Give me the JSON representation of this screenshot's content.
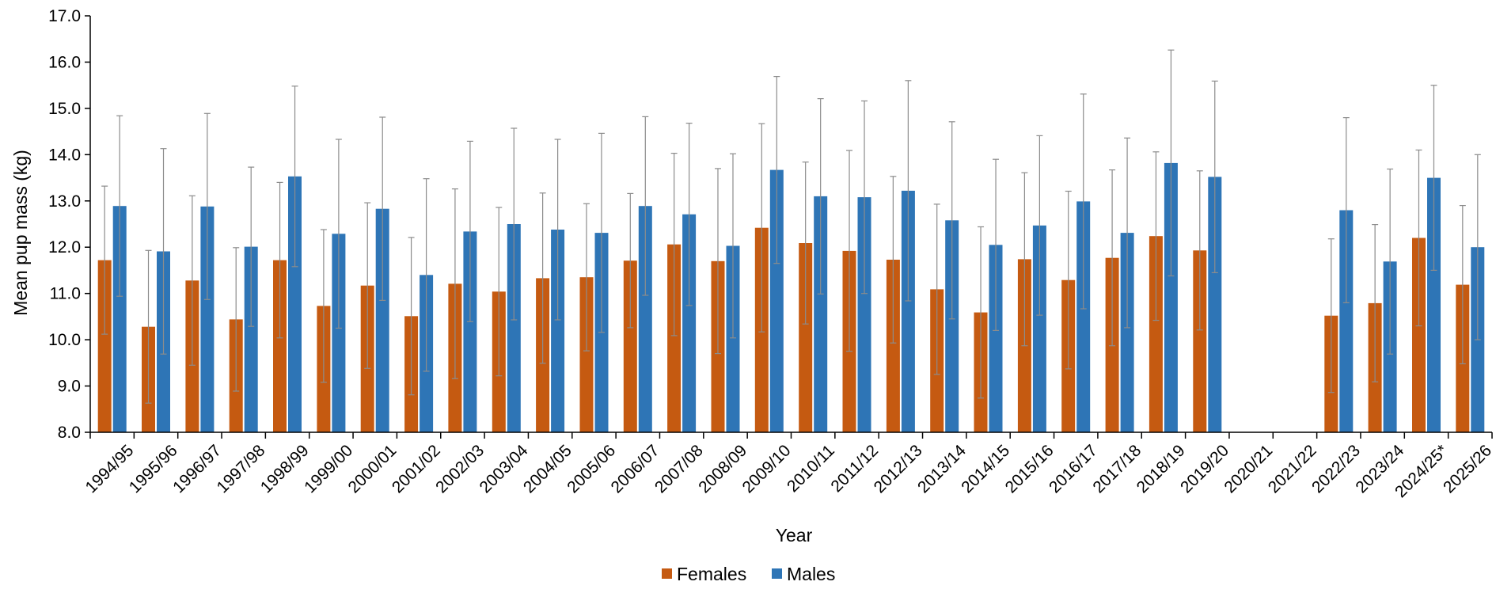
{
  "chart_data": {
    "type": "bar",
    "xlabel": "Year",
    "ylabel": "Mean pup mass (kg)",
    "ylim": [
      8.0,
      17.0
    ],
    "yticks": [
      "8.0",
      "9.0",
      "10.0",
      "11.0",
      "12.0",
      "13.0",
      "14.0",
      "15.0",
      "16.0",
      "17.0"
    ],
    "grid": false,
    "legend_position": "bottom",
    "categories": [
      "1994/95",
      "1995/96",
      "1996/97",
      "1997/98",
      "1998/99",
      "1999/00",
      "2000/01",
      "2001/02",
      "2002/03",
      "2003/04",
      "2004/05",
      "2005/06",
      "2006/07",
      "2007/08",
      "2008/09",
      "2009/10",
      "2010/11",
      "2011/12",
      "2012/13",
      "2013/14",
      "2014/15",
      "2015/16",
      "2016/17",
      "2017/18",
      "2018/19",
      "2019/20",
      "2020/21",
      "2021/22",
      "2022/23",
      "2023/24",
      "2024/25*",
      "2025/26"
    ],
    "series": [
      {
        "name": "Females",
        "color": "#c55a11",
        "values": [
          11.72,
          10.28,
          11.28,
          10.44,
          11.72,
          10.73,
          11.17,
          10.51,
          11.21,
          11.04,
          11.33,
          11.35,
          11.71,
          12.06,
          11.7,
          12.42,
          12.09,
          11.92,
          11.73,
          11.09,
          10.59,
          11.74,
          11.29,
          11.77,
          12.24,
          11.93,
          null,
          null,
          10.52,
          10.79,
          12.2,
          11.19
        ],
        "error": [
          1.6,
          1.65,
          1.83,
          1.55,
          1.68,
          1.65,
          1.79,
          1.7,
          2.05,
          1.82,
          1.84,
          1.59,
          1.45,
          1.97,
          2.0,
          2.25,
          1.75,
          2.17,
          1.8,
          1.84,
          1.85,
          1.87,
          1.92,
          1.9,
          1.82,
          1.72,
          null,
          null,
          1.66,
          1.7,
          1.9,
          1.71
        ]
      },
      {
        "name": "Males",
        "color": "#2e75b6",
        "values": [
          12.89,
          11.91,
          12.88,
          12.01,
          13.53,
          12.29,
          12.83,
          11.4,
          12.34,
          12.5,
          12.38,
          12.31,
          12.89,
          12.71,
          12.03,
          13.67,
          13.1,
          13.08,
          13.22,
          12.58,
          12.05,
          12.47,
          12.99,
          12.31,
          13.82,
          13.52,
          null,
          null,
          12.8,
          11.69,
          13.5,
          12.0
        ],
        "error": [
          1.95,
          2.22,
          2.01,
          1.72,
          1.95,
          2.04,
          1.98,
          2.08,
          1.95,
          2.07,
          1.95,
          2.15,
          1.93,
          1.97,
          1.99,
          2.02,
          2.11,
          2.08,
          2.38,
          2.13,
          1.85,
          1.94,
          2.32,
          2.05,
          2.44,
          2.07,
          null,
          null,
          2.0,
          2.0,
          2.0,
          2.0
        ]
      }
    ]
  }
}
